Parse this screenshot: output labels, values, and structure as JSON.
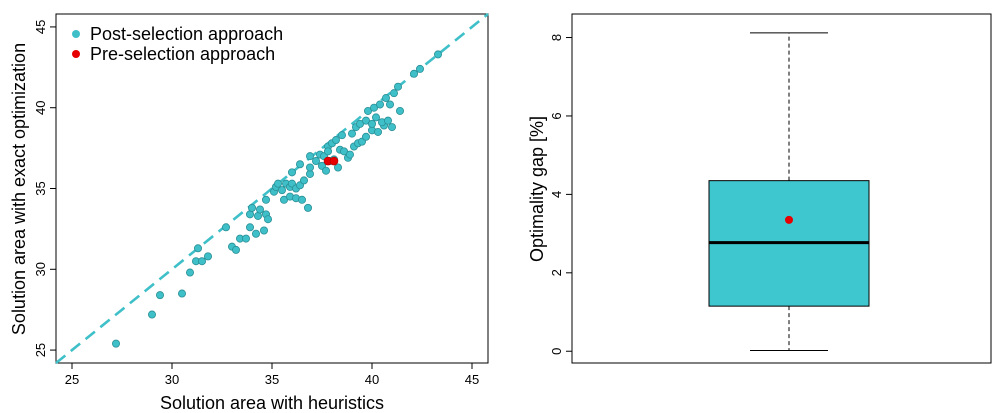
{
  "chart_data": [
    {
      "type": "scatter",
      "xlabel": "Solution area with heuristics",
      "ylabel": "Solution area with exact optimization",
      "xlim": [
        24.2,
        45.8
      ],
      "ylim": [
        24.2,
        45.8
      ],
      "xticks": [
        "25",
        "30",
        "35",
        "40",
        "45"
      ],
      "yticks": [
        "25",
        "30",
        "35",
        "40",
        "45"
      ],
      "reference_line": "y = x (dashed)",
      "legend": {
        "placement": "top-left",
        "entries": [
          "Post-selection approach",
          "Pre-selection approach"
        ]
      },
      "colors": {
        "post": "#3fc0c9",
        "pre": "#e60000",
        "ref": "#3fc0c9"
      },
      "series": [
        {
          "name": "Post-selection approach",
          "points": [
            [
              27.2,
              25.4
            ],
            [
              29.0,
              27.2
            ],
            [
              29.4,
              28.4
            ],
            [
              30.5,
              28.5
            ],
            [
              30.9,
              29.8
            ],
            [
              31.2,
              30.5
            ],
            [
              31.5,
              30.5
            ],
            [
              31.8,
              30.8
            ],
            [
              31.3,
              31.3
            ],
            [
              32.7,
              32.6
            ],
            [
              33.0,
              31.4
            ],
            [
              33.2,
              31.2
            ],
            [
              33.4,
              31.9
            ],
            [
              33.7,
              31.9
            ],
            [
              33.9,
              32.6
            ],
            [
              34.2,
              32.2
            ],
            [
              34.6,
              32.4
            ],
            [
              33.9,
              33.4
            ],
            [
              34.3,
              33.3
            ],
            [
              34.7,
              33.4
            ],
            [
              34.8,
              33.1
            ],
            [
              34.0,
              33.8
            ],
            [
              34.4,
              33.7
            ],
            [
              34.7,
              34.3
            ],
            [
              35.1,
              34.8
            ],
            [
              35.2,
              35.1
            ],
            [
              35.3,
              35.3
            ],
            [
              35.5,
              34.9
            ],
            [
              35.7,
              35.3
            ],
            [
              35.9,
              35.1
            ],
            [
              36.0,
              35.3
            ],
            [
              36.2,
              35.0
            ],
            [
              36.4,
              35.2
            ],
            [
              36.6,
              35.5
            ],
            [
              36.9,
              35.9
            ],
            [
              35.6,
              34.3
            ],
            [
              35.9,
              34.5
            ],
            [
              36.2,
              34.4
            ],
            [
              36.5,
              34.3
            ],
            [
              36.8,
              33.8
            ],
            [
              36.0,
              36.0
            ],
            [
              36.4,
              36.5
            ],
            [
              36.9,
              36.3
            ],
            [
              37.2,
              36.7
            ],
            [
              37.4,
              37.1
            ],
            [
              37.5,
              36.4
            ],
            [
              37.7,
              36.1
            ],
            [
              37.9,
              36.7
            ],
            [
              38.1,
              36.8
            ],
            [
              38.3,
              36.3
            ],
            [
              37.6,
              37.0
            ],
            [
              37.8,
              37.6
            ],
            [
              38.0,
              37.8
            ],
            [
              38.2,
              38.0
            ],
            [
              38.4,
              37.4
            ],
            [
              38.6,
              37.3
            ],
            [
              38.8,
              36.9
            ],
            [
              38.9,
              37.1
            ],
            [
              39.1,
              37.6
            ],
            [
              39.3,
              37.8
            ],
            [
              39.5,
              37.9
            ],
            [
              39.7,
              38.2
            ],
            [
              40.0,
              38.6
            ],
            [
              40.3,
              38.5
            ],
            [
              40.6,
              38.9
            ],
            [
              41.0,
              38.8
            ],
            [
              39.0,
              38.4
            ],
            [
              39.2,
              38.8
            ],
            [
              39.4,
              39.0
            ],
            [
              39.7,
              39.2
            ],
            [
              40.0,
              39.0
            ],
            [
              40.2,
              39.4
            ],
            [
              40.5,
              39.1
            ],
            [
              40.8,
              39.2
            ],
            [
              41.4,
              39.8
            ],
            [
              39.8,
              39.8
            ],
            [
              40.1,
              40.0
            ],
            [
              40.4,
              40.2
            ],
            [
              40.7,
              40.6
            ],
            [
              40.9,
              40.2
            ],
            [
              41.1,
              40.9
            ],
            [
              41.3,
              41.3
            ],
            [
              42.1,
              42.1
            ],
            [
              42.4,
              42.4
            ],
            [
              43.3,
              43.3
            ],
            [
              38.5,
              38.3
            ],
            [
              37.8,
              37.3
            ],
            [
              36.9,
              37.0
            ]
          ]
        },
        {
          "name": "Pre-selection approach",
          "points": [
            [
              37.8,
              36.7
            ],
            [
              38.1,
              36.7
            ]
          ]
        }
      ]
    },
    {
      "type": "box",
      "ylabel": "Optimality gap [%]",
      "ylim": [
        -0.3,
        8.6
      ],
      "yticks": [
        "0",
        "2",
        "4",
        "6",
        "8"
      ],
      "box": {
        "min": 0.02,
        "q1": 1.15,
        "median": 2.77,
        "q3": 4.35,
        "max": 8.12,
        "mean": 3.35
      },
      "colors": {
        "fill": "#3fc7cf",
        "mean": "#e60000"
      }
    }
  ]
}
